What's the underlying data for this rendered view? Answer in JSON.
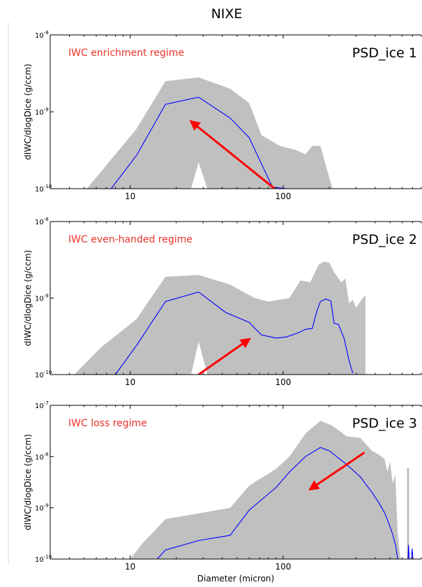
{
  "figure": {
    "title": "NIXE",
    "xlabel": "Diameter (micron)"
  },
  "colors": {
    "envelope": "#c0c0c0",
    "median_line": "#0000ff",
    "arrow": "#ff0000",
    "regime_text": "#e8332a",
    "axis": "#000000"
  },
  "chart_data": [
    {
      "type": "area",
      "title": "PSD_ice 1",
      "regime": "IWC enrichment regime",
      "xlabel": "",
      "ylabel": "dIWC/dlogDice (g/ccm)",
      "xscale": "log",
      "yscale": "log",
      "xlim": [
        3,
        800
      ],
      "ylim": [
        1e-10,
        1e-08
      ],
      "xticks": [
        {
          "v": 10,
          "t": "10"
        },
        {
          "v": 100,
          "t": "100"
        }
      ],
      "yticks": [
        {
          "v": 1e-10,
          "b": "10",
          "e": "-10"
        },
        {
          "v": 1e-09,
          "b": "10",
          "e": "-9"
        },
        {
          "v": 1e-08,
          "b": "10",
          "e": "-8"
        }
      ],
      "envelope": {
        "upper": [
          [
            5.2,
            1e-10
          ],
          [
            6.5,
            1.7e-10
          ],
          [
            11,
            6e-10
          ],
          [
            17,
            2.5e-09
          ],
          [
            28,
            2.8e-09
          ],
          [
            45,
            2e-09
          ],
          [
            60,
            1.3e-09
          ],
          [
            72,
            5e-10
          ],
          [
            95,
            3.6e-10
          ],
          [
            120,
            3.2e-10
          ],
          [
            140,
            2.8e-10
          ],
          [
            155,
            3.6e-10
          ],
          [
            175,
            3.6e-10
          ],
          [
            210,
            1e-10
          ]
        ],
        "lower": [
          [
            25,
            1e-10
          ],
          [
            28,
            2.2e-10
          ],
          [
            32,
            1e-10
          ]
        ]
      },
      "series": [
        {
          "values": [
            [
              7.5,
              1e-10
            ],
            [
              11,
              2.7e-10
            ],
            [
              17,
              1.25e-09
            ],
            [
              28,
              1.55e-09
            ],
            [
              45,
              8.3e-10
            ],
            [
              60,
              4.6e-10
            ],
            [
              85,
              1.05e-10
            ],
            [
              105,
              1e-10
            ]
          ]
        }
      ],
      "arrow": {
        "from": [
          88,
          1e-10
        ],
        "to": [
          25,
          7.5e-10
        ]
      }
    },
    {
      "type": "area",
      "title": "PSD_ice 2",
      "regime": "IWC even-handed regime",
      "xlabel": "",
      "ylabel": "dIWC/dlogDice (g/ccm)",
      "xscale": "log",
      "yscale": "log",
      "xlim": [
        3,
        800
      ],
      "ylim": [
        1e-10,
        1e-08
      ],
      "xticks": [
        {
          "v": 10,
          "t": "10"
        },
        {
          "v": 100,
          "t": "100"
        }
      ],
      "yticks": [
        {
          "v": 1e-10,
          "b": "10",
          "e": "-10"
        },
        {
          "v": 1e-09,
          "b": "10",
          "e": "-9"
        },
        {
          "v": 1e-08,
          "b": "10",
          "e": "-8"
        }
      ],
      "envelope": {
        "upper": [
          [
            4.3,
            1e-10
          ],
          [
            6.5,
            2.3e-10
          ],
          [
            11,
            5.3e-10
          ],
          [
            17,
            1.9e-09
          ],
          [
            28,
            2e-09
          ],
          [
            45,
            1.5e-09
          ],
          [
            65,
            1e-09
          ],
          [
            80,
            9e-10
          ],
          [
            95,
            9.5e-10
          ],
          [
            110,
            1e-09
          ],
          [
            130,
            1.7e-09
          ],
          [
            150,
            1.6e-09
          ],
          [
            170,
            2.7e-09
          ],
          [
            185,
            3e-09
          ],
          [
            200,
            2.9e-09
          ],
          [
            215,
            2.2e-09
          ],
          [
            240,
            1.6e-09
          ],
          [
            255,
            1.8e-09
          ],
          [
            270,
            8.5e-10
          ],
          [
            285,
            9.5e-10
          ],
          [
            300,
            7.5e-10
          ],
          [
            320,
            9e-10
          ],
          [
            345,
            1.1e-09
          ],
          [
            345,
            1e-10
          ]
        ],
        "lower": [
          [
            25,
            1e-10
          ],
          [
            28,
            2.7e-10
          ],
          [
            32,
            1e-10
          ]
        ]
      },
      "series": [
        {
          "values": [
            [
              8,
              1e-10
            ],
            [
              11,
              2.4e-10
            ],
            [
              17,
              9e-10
            ],
            [
              28,
              1.2e-09
            ],
            [
              42,
              6.5e-10
            ],
            [
              60,
              4.8e-10
            ],
            [
              72,
              3.3e-10
            ],
            [
              90,
              3e-10
            ],
            [
              105,
              3.1e-10
            ],
            [
              125,
              3.5e-10
            ],
            [
              140,
              3.9e-10
            ],
            [
              155,
              4e-10
            ],
            [
              165,
              6.5e-10
            ],
            [
              175,
              9e-10
            ],
            [
              190,
              9.7e-10
            ],
            [
              205,
              9.2e-10
            ],
            [
              215,
              4.7e-10
            ],
            [
              230,
              4.5e-10
            ],
            [
              250,
              3e-10
            ],
            [
              270,
              1.5e-10
            ],
            [
              285,
              1.05e-10
            ]
          ]
        }
      ],
      "arrow": {
        "from": [
          28,
          1e-10
        ],
        "to": [
          60,
          2.9e-10
        ]
      }
    },
    {
      "type": "area",
      "title": "PSD_ice 3",
      "regime": "IWC loss regime",
      "xlabel": "Diameter (micron)",
      "ylabel": "dIWC/dlogDice (g/ccm)",
      "xscale": "log",
      "yscale": "log",
      "xlim": [
        3,
        800
      ],
      "ylim": [
        1e-10,
        1e-07
      ],
      "xticks": [
        {
          "v": 10,
          "t": "10"
        },
        {
          "v": 100,
          "t": "100"
        }
      ],
      "yticks": [
        {
          "v": 1e-10,
          "b": "10",
          "e": "-10"
        },
        {
          "v": 1e-09,
          "b": "10",
          "e": "-9"
        },
        {
          "v": 1e-08,
          "b": "10",
          "e": "-8"
        },
        {
          "v": 1e-07,
          "b": "10",
          "e": "-7"
        }
      ],
      "envelope": {
        "upper": [
          [
            10,
            1e-10
          ],
          [
            12,
            2e-10
          ],
          [
            17,
            6e-10
          ],
          [
            45,
            1e-09
          ],
          [
            60,
            2.7e-09
          ],
          [
            90,
            5.8e-09
          ],
          [
            110,
            1e-08
          ],
          [
            140,
            2.8e-08
          ],
          [
            175,
            5e-08
          ],
          [
            210,
            4e-08
          ],
          [
            260,
            2.5e-08
          ],
          [
            320,
            2.3e-08
          ],
          [
            380,
            1.3e-08
          ],
          [
            420,
            1.1e-08
          ],
          [
            460,
            9e-09
          ],
          [
            480,
            5e-09
          ],
          [
            500,
            8e-09
          ],
          [
            520,
            3e-09
          ],
          [
            540,
            4.5e-09
          ],
          [
            560,
            3.5e-10
          ],
          [
            570,
            2e-10
          ],
          [
            585,
            1e-10
          ]
        ],
        "lower": []
      },
      "spikes": [
        [
          655,
          6e-09
        ]
      ],
      "series": [
        {
          "values": [
            [
              15,
              1e-10
            ],
            [
              17,
              1.5e-10
            ],
            [
              28,
              2.3e-10
            ],
            [
              45,
              2.9e-10
            ],
            [
              60,
              9e-10
            ],
            [
              90,
              2.5e-09
            ],
            [
              110,
              5e-09
            ],
            [
              140,
              1e-08
            ],
            [
              175,
              1.5e-08
            ],
            [
              200,
              1.3e-08
            ],
            [
              260,
              7e-09
            ],
            [
              320,
              4e-09
            ],
            [
              380,
              2e-09
            ],
            [
              420,
              1.3e-09
            ],
            [
              460,
              8e-10
            ],
            [
              490,
              5e-10
            ],
            [
              520,
              3e-10
            ],
            [
              545,
              1.8e-10
            ],
            [
              560,
              1e-10
            ]
          ]
        },
        {
          "values": [
            [
              655,
              1e-10
            ],
            [
              660,
              1.9e-10
            ],
            [
              668,
              1e-10
            ],
            [
              690,
              1e-10
            ],
            [
              697,
              1.6e-10
            ],
            [
              705,
              1e-10
            ]
          ]
        }
      ],
      "arrow": {
        "from": [
          340,
          1.2e-08
        ],
        "to": [
          150,
          2.3e-09
        ]
      }
    }
  ]
}
